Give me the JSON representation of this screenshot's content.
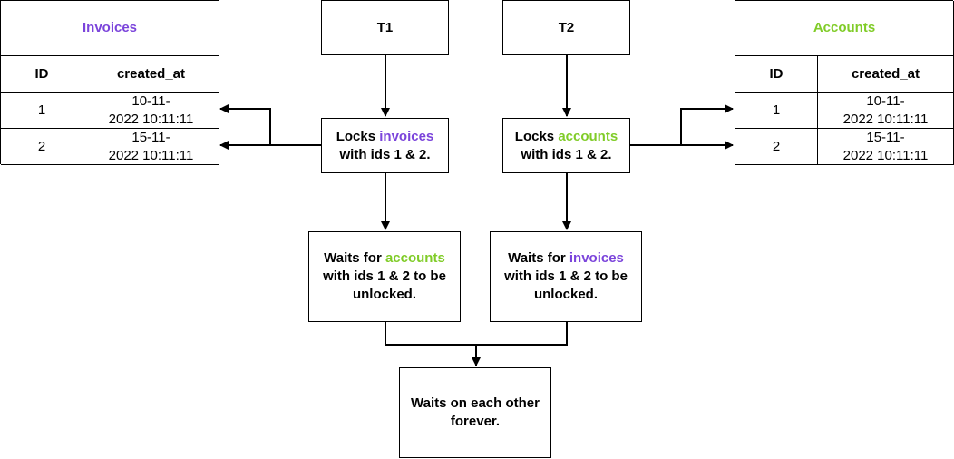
{
  "colors": {
    "invoices": "#7b44db",
    "accounts": "#80cc28",
    "line": "#000000"
  },
  "invoices_table": {
    "title": "Invoices",
    "headers": [
      "ID",
      "created_at"
    ],
    "rows": [
      {
        "id": "1",
        "created_at_line1": "10-11-",
        "created_at_line2": "2022 10:11:11"
      },
      {
        "id": "2",
        "created_at_line1": "15-11-",
        "created_at_line2": "2022 10:11:11"
      }
    ]
  },
  "accounts_table": {
    "title": "Accounts",
    "headers": [
      "ID",
      "created_at"
    ],
    "rows": [
      {
        "id": "1",
        "created_at_line1": "10-11-",
        "created_at_line2": "2022 10:11:11"
      },
      {
        "id": "2",
        "created_at_line1": "15-11-",
        "created_at_line2": "2022 10:11:11"
      }
    ]
  },
  "t1": {
    "label": "T1",
    "lock": {
      "prefix": "Locks ",
      "resource": "invoices",
      "suffix": "with ids 1 & 2."
    },
    "wait": {
      "prefix": "Waits for ",
      "resource": "accounts",
      "suffix": "with ids 1 & 2 to be unlocked."
    }
  },
  "t2": {
    "label": "T2",
    "lock": {
      "prefix": "Locks ",
      "resource": "accounts",
      "suffix": "with ids 1 & 2."
    },
    "wait": {
      "prefix": "Waits for ",
      "resource": "invoices",
      "suffix": "with ids 1 & 2 to be unlocked."
    }
  },
  "result": {
    "text": "Waits on each other forever."
  }
}
